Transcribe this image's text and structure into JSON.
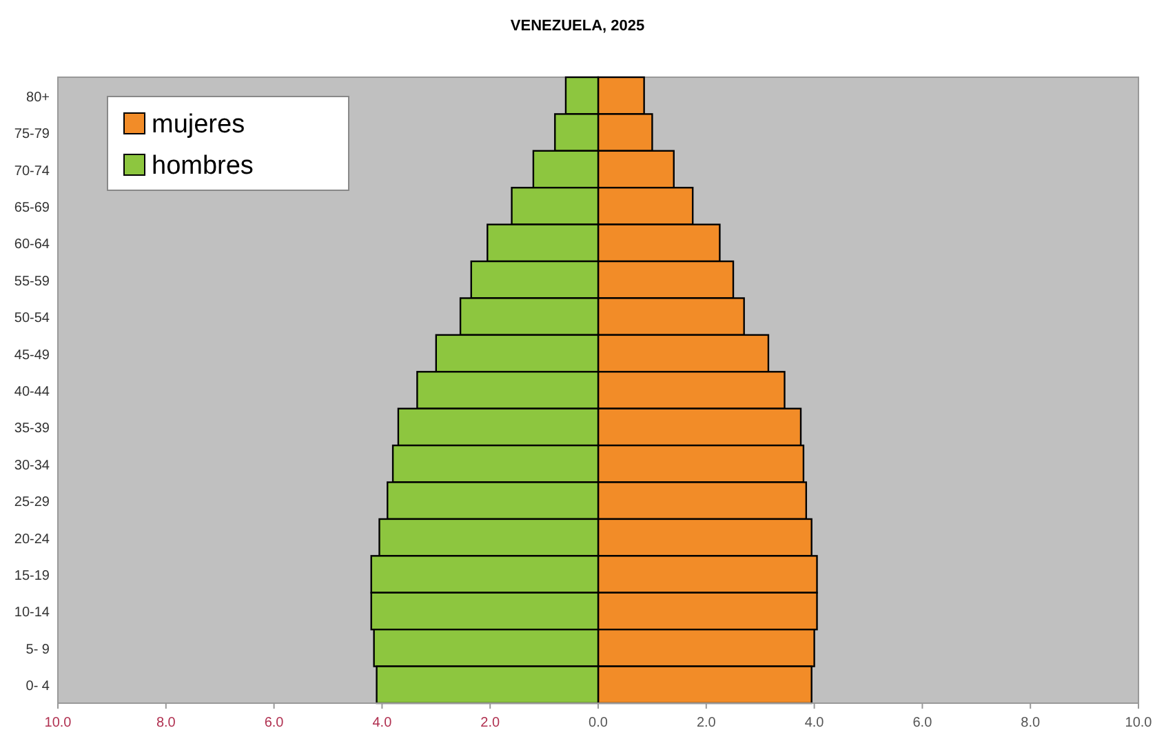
{
  "chart_data": {
    "type": "bar",
    "title": "VENEZUELA, 2025",
    "orientation": "horizontal",
    "stacked": true,
    "categories": [
      "80+",
      "75-79",
      "70-74",
      "65-69",
      "60-64",
      "55-59",
      "50-54",
      "45-49",
      "40-44",
      "35-39",
      "30-34",
      "25-29",
      "20-24",
      "15-19",
      "10-14",
      "5- 9",
      "0- 4"
    ],
    "series": [
      {
        "name": "mujeres",
        "color": "#f28c28",
        "values": [
          0.85,
          1.0,
          1.4,
          1.75,
          2.25,
          2.5,
          2.7,
          3.15,
          3.45,
          3.75,
          3.8,
          3.85,
          3.95,
          4.05,
          4.05,
          4.0,
          3.95
        ]
      },
      {
        "name": "hombres",
        "color": "#8dc63f",
        "values": [
          -0.6,
          -0.8,
          -1.2,
          -1.6,
          -2.05,
          -2.35,
          -2.55,
          -3.0,
          -3.35,
          -3.7,
          -3.8,
          -3.9,
          -4.05,
          -4.2,
          -4.2,
          -4.15,
          -4.1
        ]
      }
    ],
    "xlim": [
      -10,
      10
    ],
    "xticks": [
      {
        "value": -10,
        "label": "10.0"
      },
      {
        "value": -8,
        "label": "8.0"
      },
      {
        "value": -6,
        "label": "6.0"
      },
      {
        "value": -4,
        "label": "4.0"
      },
      {
        "value": -2,
        "label": "2.0"
      },
      {
        "value": 0,
        "label": "0.0"
      },
      {
        "value": 2,
        "label": "2.0"
      },
      {
        "value": 4,
        "label": "4.0"
      },
      {
        "value": 6,
        "label": "6.0"
      },
      {
        "value": 8,
        "label": "8.0"
      },
      {
        "value": 10,
        "label": "10.0"
      }
    ],
    "grid": false,
    "legend": "top left"
  }
}
